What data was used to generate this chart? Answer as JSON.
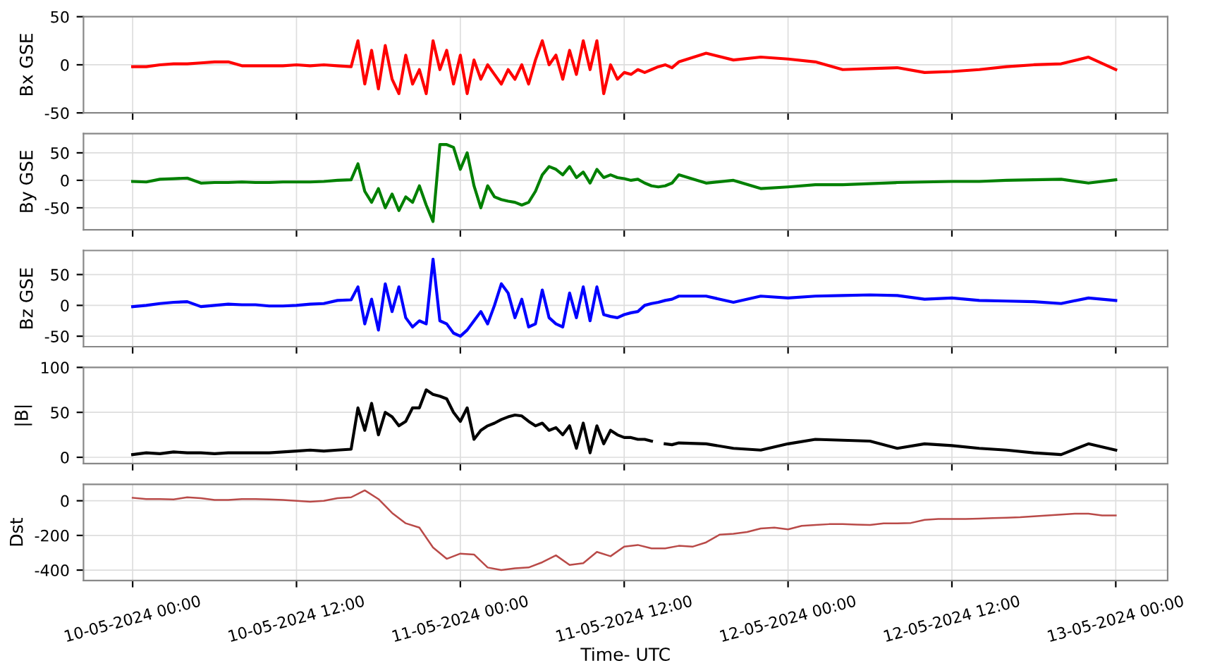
{
  "chart_data": [
    {
      "type": "line",
      "ylabel": "Bx GSE",
      "tick_labels": "y",
      "grid": true,
      "xlim": [
        "2024-05-09T20:24",
        "2024-05-13T03:48"
      ],
      "ylim": [
        -50,
        50
      ],
      "yticks": [
        -50,
        0,
        50
      ],
      "xticks": [
        {
          "value": "2024-05-10T00:00",
          "label": null
        },
        {
          "value": "2024-05-10T12:00",
          "label": null
        },
        {
          "value": "2024-05-11T00:00",
          "label": null
        },
        {
          "value": "2024-05-11T12:00",
          "label": null
        },
        {
          "value": "2024-05-12T00:00",
          "label": null
        },
        {
          "value": "2024-05-12T12:00",
          "label": null
        },
        {
          "value": "2024-05-13T00:00",
          "label": null
        }
      ],
      "x": [
        "2024-05-10T00:00",
        "2024-05-10T01:00",
        "2024-05-10T02:00",
        "2024-05-10T03:00",
        "2024-05-10T04:00",
        "2024-05-10T05:00",
        "2024-05-10T06:00",
        "2024-05-10T07:00",
        "2024-05-10T08:00",
        "2024-05-10T09:00",
        "2024-05-10T10:00",
        "2024-05-10T11:00",
        "2024-05-10T12:00",
        "2024-05-10T13:00",
        "2024-05-10T14:00",
        "2024-05-10T15:00",
        "2024-05-10T16:00",
        "2024-05-10T16:30",
        "2024-05-10T17:00",
        "2024-05-10T17:30",
        "2024-05-10T18:00",
        "2024-05-10T18:30",
        "2024-05-10T19:00",
        "2024-05-10T19:30",
        "2024-05-10T20:00",
        "2024-05-10T20:30",
        "2024-05-10T21:00",
        "2024-05-10T21:30",
        "2024-05-10T22:00",
        "2024-05-10T22:30",
        "2024-05-10T23:00",
        "2024-05-10T23:30",
        "2024-05-11T00:00",
        "2024-05-11T00:30",
        "2024-05-11T01:00",
        "2024-05-11T01:30",
        "2024-05-11T02:00",
        "2024-05-11T02:30",
        "2024-05-11T03:00",
        "2024-05-11T03:30",
        "2024-05-11T04:00",
        "2024-05-11T04:30",
        "2024-05-11T05:00",
        "2024-05-11T05:30",
        "2024-05-11T06:00",
        "2024-05-11T06:30",
        "2024-05-11T07:00",
        "2024-05-11T07:30",
        "2024-05-11T08:00",
        "2024-05-11T08:30",
        "2024-05-11T09:00",
        "2024-05-11T09:30",
        "2024-05-11T10:00",
        "2024-05-11T10:30",
        "2024-05-11T11:00",
        "2024-05-11T11:30",
        "2024-05-11T12:00",
        "2024-05-11T12:30",
        "2024-05-11T13:00",
        "2024-05-11T13:30",
        "2024-05-11T14:00",
        "2024-05-11T14:30",
        "2024-05-11T15:00",
        "2024-05-11T15:30",
        "2024-05-11T16:00",
        "2024-05-11T18:00",
        "2024-05-11T20:00",
        "2024-05-11T22:00",
        "2024-05-12T00:00",
        "2024-05-12T02:00",
        "2024-05-12T04:00",
        "2024-05-12T06:00",
        "2024-05-12T08:00",
        "2024-05-12T10:00",
        "2024-05-12T12:00",
        "2024-05-12T14:00",
        "2024-05-12T16:00",
        "2024-05-12T18:00",
        "2024-05-12T20:00",
        "2024-05-12T22:00",
        "2024-05-13T00:00"
      ],
      "series": [
        {
          "color": "#ff0000",
          "values": [
            -2,
            -2,
            0,
            1,
            1,
            2,
            3,
            3,
            -1,
            -1,
            -1,
            -1,
            0,
            -1,
            0,
            -1,
            -2,
            25,
            -20,
            15,
            -25,
            20,
            -15,
            -30,
            10,
            -20,
            -5,
            -30,
            25,
            -5,
            15,
            -20,
            10,
            -30,
            5,
            -15,
            0,
            -10,
            -20,
            -5,
            -15,
            0,
            -20,
            5,
            25,
            0,
            10,
            -15,
            15,
            -10,
            25,
            -5,
            25,
            -30,
            0,
            -15,
            -8,
            -10,
            -5,
            -8,
            -5,
            -2,
            0,
            -3,
            3,
            12,
            5,
            8,
            6,
            3,
            -5,
            -4,
            -3,
            -8,
            -7,
            -5,
            -2,
            0,
            1,
            8,
            -5
          ]
        }
      ]
    },
    {
      "type": "line",
      "ylabel": "By GSE",
      "tick_labels": "y",
      "grid": true,
      "xlim": [
        "2024-05-09T20:24",
        "2024-05-13T03:48"
      ],
      "ylim": [
        -90,
        85
      ],
      "yticks": [
        -50,
        0,
        50
      ],
      "xticks": [
        {
          "value": "2024-05-10T00:00",
          "label": null
        },
        {
          "value": "2024-05-10T12:00",
          "label": null
        },
        {
          "value": "2024-05-11T00:00",
          "label": null
        },
        {
          "value": "2024-05-11T12:00",
          "label": null
        },
        {
          "value": "2024-05-12T00:00",
          "label": null
        },
        {
          "value": "2024-05-12T12:00",
          "label": null
        },
        {
          "value": "2024-05-13T00:00",
          "label": null
        }
      ],
      "x": [
        "2024-05-10T00:00",
        "2024-05-10T01:00",
        "2024-05-10T02:00",
        "2024-05-10T03:00",
        "2024-05-10T04:00",
        "2024-05-10T05:00",
        "2024-05-10T06:00",
        "2024-05-10T07:00",
        "2024-05-10T08:00",
        "2024-05-10T09:00",
        "2024-05-10T10:00",
        "2024-05-10T11:00",
        "2024-05-10T12:00",
        "2024-05-10T13:00",
        "2024-05-10T14:00",
        "2024-05-10T15:00",
        "2024-05-10T16:00",
        "2024-05-10T16:30",
        "2024-05-10T17:00",
        "2024-05-10T17:30",
        "2024-05-10T18:00",
        "2024-05-10T18:30",
        "2024-05-10T19:00",
        "2024-05-10T19:30",
        "2024-05-10T20:00",
        "2024-05-10T20:30",
        "2024-05-10T21:00",
        "2024-05-10T21:30",
        "2024-05-10T22:00",
        "2024-05-10T22:30",
        "2024-05-10T23:00",
        "2024-05-10T23:30",
        "2024-05-11T00:00",
        "2024-05-11T00:30",
        "2024-05-11T01:00",
        "2024-05-11T01:30",
        "2024-05-11T02:00",
        "2024-05-11T02:30",
        "2024-05-11T03:00",
        "2024-05-11T03:30",
        "2024-05-11T04:00",
        "2024-05-11T04:30",
        "2024-05-11T05:00",
        "2024-05-11T05:30",
        "2024-05-11T06:00",
        "2024-05-11T06:30",
        "2024-05-11T07:00",
        "2024-05-11T07:30",
        "2024-05-11T08:00",
        "2024-05-11T08:30",
        "2024-05-11T09:00",
        "2024-05-11T09:30",
        "2024-05-11T10:00",
        "2024-05-11T10:30",
        "2024-05-11T11:00",
        "2024-05-11T11:30",
        "2024-05-11T12:00",
        "2024-05-11T12:30",
        "2024-05-11T13:00",
        "2024-05-11T13:30",
        "2024-05-11T14:00",
        "2024-05-11T14:30",
        "2024-05-11T15:00",
        "2024-05-11T15:30",
        "2024-05-11T16:00",
        "2024-05-11T18:00",
        "2024-05-11T20:00",
        "2024-05-11T22:00",
        "2024-05-12T00:00",
        "2024-05-12T02:00",
        "2024-05-12T04:00",
        "2024-05-12T06:00",
        "2024-05-12T08:00",
        "2024-05-12T10:00",
        "2024-05-12T12:00",
        "2024-05-12T14:00",
        "2024-05-12T16:00",
        "2024-05-12T18:00",
        "2024-05-12T20:00",
        "2024-05-12T22:00",
        "2024-05-13T00:00"
      ],
      "series": [
        {
          "color": "#008000",
          "values": [
            -2,
            -3,
            2,
            3,
            4,
            -5,
            -4,
            -4,
            -3,
            -4,
            -4,
            -3,
            -3,
            -3,
            -2,
            0,
            1,
            30,
            -20,
            -40,
            -15,
            -50,
            -25,
            -55,
            -30,
            -40,
            -10,
            -45,
            -75,
            65,
            65,
            60,
            20,
            50,
            -10,
            -50,
            -10,
            -30,
            -35,
            -38,
            -40,
            -45,
            -40,
            -20,
            10,
            25,
            20,
            10,
            25,
            5,
            15,
            -5,
            20,
            5,
            10,
            5,
            3,
            0,
            2,
            -5,
            -10,
            -12,
            -10,
            -5,
            10,
            -5,
            0,
            -15,
            -12,
            -8,
            -8,
            -6,
            -4,
            -3,
            -2,
            -2,
            0,
            1,
            2,
            -5,
            1
          ]
        }
      ]
    },
    {
      "type": "line",
      "ylabel": "Bz GSE",
      "tick_labels": "y",
      "grid": true,
      "xlim": [
        "2024-05-09T20:24",
        "2024-05-13T03:48"
      ],
      "ylim": [
        -67,
        89
      ],
      "yticks": [
        -50,
        0,
        50
      ],
      "xticks": [
        {
          "value": "2024-05-10T00:00",
          "label": null
        },
        {
          "value": "2024-05-10T12:00",
          "label": null
        },
        {
          "value": "2024-05-11T00:00",
          "label": null
        },
        {
          "value": "2024-05-11T12:00",
          "label": null
        },
        {
          "value": "2024-05-12T00:00",
          "label": null
        },
        {
          "value": "2024-05-12T12:00",
          "label": null
        },
        {
          "value": "2024-05-13T00:00",
          "label": null
        }
      ],
      "x": [
        "2024-05-10T00:00",
        "2024-05-10T01:00",
        "2024-05-10T02:00",
        "2024-05-10T03:00",
        "2024-05-10T04:00",
        "2024-05-10T05:00",
        "2024-05-10T06:00",
        "2024-05-10T07:00",
        "2024-05-10T08:00",
        "2024-05-10T09:00",
        "2024-05-10T10:00",
        "2024-05-10T11:00",
        "2024-05-10T12:00",
        "2024-05-10T13:00",
        "2024-05-10T14:00",
        "2024-05-10T15:00",
        "2024-05-10T16:00",
        "2024-05-10T16:30",
        "2024-05-10T17:00",
        "2024-05-10T17:30",
        "2024-05-10T18:00",
        "2024-05-10T18:30",
        "2024-05-10T19:00",
        "2024-05-10T19:30",
        "2024-05-10T20:00",
        "2024-05-10T20:30",
        "2024-05-10T21:00",
        "2024-05-10T21:30",
        "2024-05-10T22:00",
        "2024-05-10T22:30",
        "2024-05-10T23:00",
        "2024-05-10T23:30",
        "2024-05-11T00:00",
        "2024-05-11T00:30",
        "2024-05-11T01:00",
        "2024-05-11T01:30",
        "2024-05-11T02:00",
        "2024-05-11T02:30",
        "2024-05-11T03:00",
        "2024-05-11T03:30",
        "2024-05-11T04:00",
        "2024-05-11T04:30",
        "2024-05-11T05:00",
        "2024-05-11T05:30",
        "2024-05-11T06:00",
        "2024-05-11T06:30",
        "2024-05-11T07:00",
        "2024-05-11T07:30",
        "2024-05-11T08:00",
        "2024-05-11T08:30",
        "2024-05-11T09:00",
        "2024-05-11T09:30",
        "2024-05-11T10:00",
        "2024-05-11T10:30",
        "2024-05-11T11:00",
        "2024-05-11T11:30",
        "2024-05-11T12:00",
        "2024-05-11T12:30",
        "2024-05-11T13:00",
        "2024-05-11T13:30",
        "2024-05-11T14:00",
        "2024-05-11T14:30",
        "2024-05-11T15:00",
        "2024-05-11T15:30",
        "2024-05-11T16:00",
        "2024-05-11T18:00",
        "2024-05-11T20:00",
        "2024-05-11T22:00",
        "2024-05-12T00:00",
        "2024-05-12T02:00",
        "2024-05-12T04:00",
        "2024-05-12T06:00",
        "2024-05-12T08:00",
        "2024-05-12T10:00",
        "2024-05-12T12:00",
        "2024-05-12T14:00",
        "2024-05-12T16:00",
        "2024-05-12T18:00",
        "2024-05-12T20:00",
        "2024-05-12T22:00",
        "2024-05-13T00:00"
      ],
      "series": [
        {
          "color": "#0000ff",
          "values": [
            -2,
            0,
            3,
            5,
            6,
            -2,
            0,
            2,
            1,
            1,
            -1,
            -1,
            0,
            2,
            3,
            8,
            9,
            30,
            -30,
            10,
            -40,
            35,
            -10,
            30,
            -20,
            -35,
            -25,
            -30,
            75,
            -25,
            -30,
            -45,
            -50,
            -40,
            -25,
            -10,
            -30,
            0,
            35,
            20,
            -20,
            10,
            -35,
            -30,
            25,
            -20,
            -30,
            -35,
            20,
            -20,
            30,
            -25,
            30,
            -15,
            -18,
            -20,
            -15,
            -12,
            -10,
            0,
            3,
            5,
            8,
            10,
            15,
            15,
            5,
            15,
            12,
            15,
            16,
            17,
            16,
            10,
            12,
            8,
            7,
            6,
            3,
            12,
            8
          ]
        }
      ]
    },
    {
      "type": "line",
      "ylabel": "|B|",
      "tick_labels": "y",
      "grid": true,
      "xlim": [
        "2024-05-09T20:24",
        "2024-05-13T03:48"
      ],
      "ylim": [
        -7,
        100
      ],
      "yticks": [
        0,
        50,
        100
      ],
      "xticks": [
        {
          "value": "2024-05-10T00:00",
          "label": null
        },
        {
          "value": "2024-05-10T12:00",
          "label": null
        },
        {
          "value": "2024-05-11T00:00",
          "label": null
        },
        {
          "value": "2024-05-11T12:00",
          "label": null
        },
        {
          "value": "2024-05-12T00:00",
          "label": null
        },
        {
          "value": "2024-05-12T12:00",
          "label": null
        },
        {
          "value": "2024-05-13T00:00",
          "label": null
        }
      ],
      "x": [
        "2024-05-10T00:00",
        "2024-05-10T01:00",
        "2024-05-10T02:00",
        "2024-05-10T03:00",
        "2024-05-10T04:00",
        "2024-05-10T05:00",
        "2024-05-10T06:00",
        "2024-05-10T07:00",
        "2024-05-10T08:00",
        "2024-05-10T09:00",
        "2024-05-10T10:00",
        "2024-05-10T11:00",
        "2024-05-10T12:00",
        "2024-05-10T13:00",
        "2024-05-10T14:00",
        "2024-05-10T15:00",
        "2024-05-10T16:00",
        "2024-05-10T16:30",
        "2024-05-10T17:00",
        "2024-05-10T17:30",
        "2024-05-10T18:00",
        "2024-05-10T18:30",
        "2024-05-10T19:00",
        "2024-05-10T19:30",
        "2024-05-10T20:00",
        "2024-05-10T20:30",
        "2024-05-10T21:00",
        "2024-05-10T21:30",
        "2024-05-10T22:00",
        "2024-05-10T22:30",
        "2024-05-10T23:00",
        "2024-05-10T23:30",
        "2024-05-11T00:00",
        "2024-05-11T00:30",
        "2024-05-11T01:00",
        "2024-05-11T01:30",
        "2024-05-11T02:00",
        "2024-05-11T02:30",
        "2024-05-11T03:00",
        "2024-05-11T03:30",
        "2024-05-11T04:00",
        "2024-05-11T04:30",
        "2024-05-11T05:00",
        "2024-05-11T05:30",
        "2024-05-11T06:00",
        "2024-05-11T06:30",
        "2024-05-11T07:00",
        "2024-05-11T07:30",
        "2024-05-11T08:00",
        "2024-05-11T08:30",
        "2024-05-11T09:00",
        "2024-05-11T09:30",
        "2024-05-11T10:00",
        "2024-05-11T10:30",
        "2024-05-11T11:00",
        "2024-05-11T11:30",
        "2024-05-11T12:00",
        "2024-05-11T12:30",
        "2024-05-11T13:00",
        "2024-05-11T13:30",
        "2024-05-11T14:00",
        "2024-05-11T14:30",
        "2024-05-11T15:00",
        "2024-05-11T15:30",
        "2024-05-11T16:00",
        "2024-05-11T18:00",
        "2024-05-11T20:00",
        "2024-05-11T22:00",
        "2024-05-12T00:00",
        "2024-05-12T02:00",
        "2024-05-12T04:00",
        "2024-05-12T06:00",
        "2024-05-12T08:00",
        "2024-05-12T10:00",
        "2024-05-12T12:00",
        "2024-05-12T14:00",
        "2024-05-12T16:00",
        "2024-05-12T18:00",
        "2024-05-12T20:00",
        "2024-05-12T22:00",
        "2024-05-13T00:00"
      ],
      "series": [
        {
          "color": "#000000",
          "values": [
            3,
            5,
            4,
            6,
            5,
            5,
            4,
            5,
            5,
            5,
            5,
            6,
            7,
            8,
            7,
            8,
            9,
            55,
            30,
            60,
            25,
            50,
            45,
            35,
            40,
            55,
            55,
            75,
            70,
            68,
            65,
            50,
            40,
            55,
            20,
            30,
            35,
            38,
            42,
            45,
            47,
            46,
            40,
            35,
            38,
            30,
            33,
            25,
            35,
            10,
            38,
            5,
            35,
            15,
            30,
            25,
            22,
            22,
            20,
            20,
            18,
            null,
            15,
            14,
            16,
            15,
            10,
            8,
            15,
            20,
            19,
            18,
            10,
            15,
            13,
            10,
            8,
            5,
            3,
            15,
            8
          ]
        }
      ]
    },
    {
      "type": "line",
      "ylabel": "Dst",
      "xlabel": "Time- UTC",
      "grid": true,
      "xlim": [
        "2024-05-09T20:24",
        "2024-05-13T03:48"
      ],
      "ylim": [
        -460,
        95
      ],
      "yticks": [
        -400,
        -200,
        0
      ],
      "xticks": [
        {
          "value": "2024-05-10T00:00",
          "label": "10-05-2024 00:00"
        },
        {
          "value": "2024-05-10T12:00",
          "label": "10-05-2024 12:00"
        },
        {
          "value": "2024-05-11T00:00",
          "label": "11-05-2024 00:00"
        },
        {
          "value": "2024-05-11T12:00",
          "label": "11-05-2024 12:00"
        },
        {
          "value": "2024-05-12T00:00",
          "label": "12-05-2024 00:00"
        },
        {
          "value": "2024-05-12T12:00",
          "label": "12-05-2024 12:00"
        },
        {
          "value": "2024-05-13T00:00",
          "label": "13-05-2024 00:00"
        }
      ],
      "x": [
        "2024-05-10T00:00",
        "2024-05-10T01:00",
        "2024-05-10T02:00",
        "2024-05-10T03:00",
        "2024-05-10T04:00",
        "2024-05-10T05:00",
        "2024-05-10T06:00",
        "2024-05-10T07:00",
        "2024-05-10T08:00",
        "2024-05-10T09:00",
        "2024-05-10T10:00",
        "2024-05-10T11:00",
        "2024-05-10T12:00",
        "2024-05-10T13:00",
        "2024-05-10T14:00",
        "2024-05-10T15:00",
        "2024-05-10T16:00",
        "2024-05-10T17:00",
        "2024-05-10T18:00",
        "2024-05-10T19:00",
        "2024-05-10T20:00",
        "2024-05-10T21:00",
        "2024-05-10T22:00",
        "2024-05-10T23:00",
        "2024-05-11T00:00",
        "2024-05-11T01:00",
        "2024-05-11T02:00",
        "2024-05-11T03:00",
        "2024-05-11T04:00",
        "2024-05-11T05:00",
        "2024-05-11T06:00",
        "2024-05-11T07:00",
        "2024-05-11T08:00",
        "2024-05-11T09:00",
        "2024-05-11T10:00",
        "2024-05-11T11:00",
        "2024-05-11T12:00",
        "2024-05-11T13:00",
        "2024-05-11T14:00",
        "2024-05-11T15:00",
        "2024-05-11T16:00",
        "2024-05-11T17:00",
        "2024-05-11T18:00",
        "2024-05-11T19:00",
        "2024-05-11T20:00",
        "2024-05-11T21:00",
        "2024-05-11T22:00",
        "2024-05-11T23:00",
        "2024-05-12T00:00",
        "2024-05-12T01:00",
        "2024-05-12T02:00",
        "2024-05-12T03:00",
        "2024-05-12T04:00",
        "2024-05-12T05:00",
        "2024-05-12T06:00",
        "2024-05-12T07:00",
        "2024-05-12T08:00",
        "2024-05-12T09:00",
        "2024-05-12T10:00",
        "2024-05-12T11:00",
        "2024-05-12T12:00",
        "2024-05-12T13:00",
        "2024-05-12T14:00",
        "2024-05-12T15:00",
        "2024-05-12T16:00",
        "2024-05-12T17:00",
        "2024-05-12T18:00",
        "2024-05-12T19:00",
        "2024-05-12T20:00",
        "2024-05-12T21:00",
        "2024-05-12T22:00",
        "2024-05-12T23:00",
        "2024-05-13T00:00"
      ],
      "series": [
        {
          "color": "#b94a48",
          "values": [
            17,
            10,
            10,
            8,
            20,
            15,
            5,
            5,
            10,
            10,
            8,
            5,
            0,
            -5,
            0,
            15,
            20,
            60,
            10,
            -70,
            -130,
            -155,
            -270,
            -335,
            -305,
            -310,
            -385,
            -400,
            -390,
            -385,
            -355,
            -315,
            -370,
            -360,
            -295,
            -320,
            -265,
            -255,
            -275,
            -275,
            -260,
            -265,
            -240,
            -195,
            -190,
            -180,
            -160,
            -155,
            -165,
            -145,
            -140,
            -135,
            -135,
            -138,
            -140,
            -130,
            -130,
            -128,
            -110,
            -105,
            -105,
            -105,
            -103,
            -100,
            -98,
            -95,
            -90,
            -85,
            -80,
            -75,
            -75,
            -85,
            -85
          ]
        }
      ]
    }
  ]
}
